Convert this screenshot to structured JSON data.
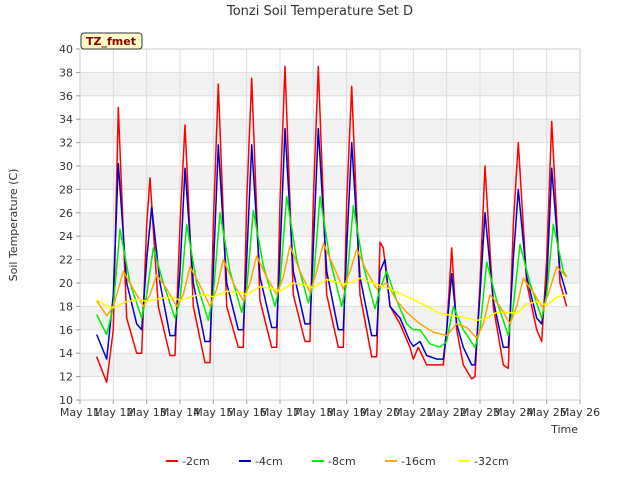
{
  "chart_data": {
    "type": "line",
    "title": "Tonzi Soil Temperature Set D",
    "xlabel": "Time",
    "ylabel": "Soil Temperature (C)",
    "annotation": "TZ_fmet",
    "xlim": [
      11,
      26
    ],
    "ylim": [
      10,
      40
    ],
    "x_ticks": [
      "May 11",
      "May 12",
      "May 13",
      "May 14",
      "May 15",
      "May 16",
      "May 17",
      "May 18",
      "May 19",
      "May 20",
      "May 21",
      "May 22",
      "May 23",
      "May 24",
      "May 25",
      "May 26"
    ],
    "y_ticks": [
      10,
      12,
      14,
      16,
      18,
      20,
      22,
      24,
      26,
      28,
      30,
      32,
      34,
      36,
      38,
      40
    ],
    "grid": true,
    "legend_position": "bottom",
    "series": [
      {
        "name": "-2cm",
        "color": "#ff0000",
        "points": [
          [
            11.5,
            13.7
          ],
          [
            11.8,
            11.5
          ],
          [
            12.0,
            16.0
          ],
          [
            12.15,
            35.0
          ],
          [
            12.4,
            17.0
          ],
          [
            12.7,
            14.0
          ],
          [
            12.85,
            14.0
          ],
          [
            13.0,
            25.0
          ],
          [
            13.1,
            29.0
          ],
          [
            13.35,
            18.0
          ],
          [
            13.7,
            13.8
          ],
          [
            13.85,
            13.8
          ],
          [
            14.0,
            25.0
          ],
          [
            14.15,
            33.5
          ],
          [
            14.4,
            18.0
          ],
          [
            14.75,
            13.2
          ],
          [
            14.9,
            13.2
          ],
          [
            15.0,
            25.0
          ],
          [
            15.15,
            37.0
          ],
          [
            15.4,
            18.0
          ],
          [
            15.75,
            14.5
          ],
          [
            15.9,
            14.5
          ],
          [
            16.0,
            27.0
          ],
          [
            16.15,
            37.5
          ],
          [
            16.4,
            18.5
          ],
          [
            16.75,
            14.5
          ],
          [
            16.9,
            14.5
          ],
          [
            17.0,
            27.0
          ],
          [
            17.15,
            38.5
          ],
          [
            17.4,
            19.0
          ],
          [
            17.75,
            15.0
          ],
          [
            17.9,
            15.0
          ],
          [
            18.0,
            27.0
          ],
          [
            18.15,
            38.5
          ],
          [
            18.4,
            19.0
          ],
          [
            18.75,
            14.5
          ],
          [
            18.9,
            14.5
          ],
          [
            19.0,
            27.0
          ],
          [
            19.15,
            36.8
          ],
          [
            19.4,
            19.0
          ],
          [
            19.75,
            13.7
          ],
          [
            19.9,
            13.7
          ],
          [
            20.0,
            23.5
          ],
          [
            20.1,
            23.0
          ],
          [
            20.3,
            18.0
          ],
          [
            20.6,
            16.5
          ],
          [
            20.9,
            14.5
          ],
          [
            21.0,
            13.5
          ],
          [
            21.15,
            14.5
          ],
          [
            21.4,
            13.0
          ],
          [
            21.7,
            13.0
          ],
          [
            21.9,
            13.0
          ],
          [
            22.0,
            16.0
          ],
          [
            22.15,
            23.0
          ],
          [
            22.3,
            16.0
          ],
          [
            22.5,
            13.0
          ],
          [
            22.75,
            11.8
          ],
          [
            22.85,
            12.0
          ],
          [
            23.0,
            20.0
          ],
          [
            23.15,
            30.0
          ],
          [
            23.4,
            18.0
          ],
          [
            23.7,
            13.0
          ],
          [
            23.85,
            12.7
          ],
          [
            24.0,
            25.0
          ],
          [
            24.15,
            32.0
          ],
          [
            24.4,
            20.0
          ],
          [
            24.7,
            16.0
          ],
          [
            24.85,
            15.0
          ],
          [
            25.0,
            22.0
          ],
          [
            25.15,
            33.8
          ],
          [
            25.4,
            20.0
          ],
          [
            25.6,
            18.0
          ]
        ]
      },
      {
        "name": "-4cm",
        "color": "#0000cc",
        "points": [
          [
            11.5,
            15.6
          ],
          [
            11.8,
            13.5
          ],
          [
            12.0,
            19.0
          ],
          [
            12.15,
            30.2
          ],
          [
            12.4,
            20.0
          ],
          [
            12.7,
            16.5
          ],
          [
            12.85,
            16.0
          ],
          [
            13.0,
            22.0
          ],
          [
            13.15,
            26.5
          ],
          [
            13.4,
            20.0
          ],
          [
            13.7,
            15.5
          ],
          [
            13.85,
            15.5
          ],
          [
            14.0,
            21.0
          ],
          [
            14.15,
            29.8
          ],
          [
            14.4,
            20.0
          ],
          [
            14.75,
            15.0
          ],
          [
            14.9,
            15.0
          ],
          [
            15.0,
            21.0
          ],
          [
            15.15,
            31.8
          ],
          [
            15.4,
            20.0
          ],
          [
            15.75,
            16.0
          ],
          [
            15.9,
            16.0
          ],
          [
            16.0,
            22.0
          ],
          [
            16.15,
            31.8
          ],
          [
            16.4,
            20.5
          ],
          [
            16.75,
            16.2
          ],
          [
            16.9,
            16.2
          ],
          [
            17.0,
            22.5
          ],
          [
            17.15,
            33.2
          ],
          [
            17.4,
            21.0
          ],
          [
            17.75,
            16.5
          ],
          [
            17.9,
            16.5
          ],
          [
            18.0,
            23.0
          ],
          [
            18.15,
            33.2
          ],
          [
            18.4,
            21.0
          ],
          [
            18.75,
            16.0
          ],
          [
            18.9,
            16.0
          ],
          [
            19.0,
            23.0
          ],
          [
            19.15,
            32.0
          ],
          [
            19.4,
            20.5
          ],
          [
            19.75,
            15.5
          ],
          [
            19.9,
            15.5
          ],
          [
            20.0,
            21.0
          ],
          [
            20.15,
            22.0
          ],
          [
            20.3,
            18.0
          ],
          [
            20.6,
            17.0
          ],
          [
            20.9,
            15.0
          ],
          [
            21.0,
            14.6
          ],
          [
            21.2,
            15.0
          ],
          [
            21.4,
            13.8
          ],
          [
            21.7,
            13.5
          ],
          [
            21.9,
            13.5
          ],
          [
            22.0,
            16.0
          ],
          [
            22.15,
            20.8
          ],
          [
            22.3,
            16.5
          ],
          [
            22.5,
            14.5
          ],
          [
            22.75,
            13.0
          ],
          [
            22.85,
            13.0
          ],
          [
            23.0,
            19.0
          ],
          [
            23.15,
            26.0
          ],
          [
            23.4,
            18.5
          ],
          [
            23.7,
            14.5
          ],
          [
            23.85,
            14.5
          ],
          [
            24.0,
            22.0
          ],
          [
            24.15,
            28.0
          ],
          [
            24.4,
            20.5
          ],
          [
            24.7,
            17.0
          ],
          [
            24.85,
            16.5
          ],
          [
            25.0,
            20.0
          ],
          [
            25.15,
            29.8
          ],
          [
            25.4,
            21.0
          ],
          [
            25.6,
            19.0
          ]
        ]
      },
      {
        "name": "-8cm",
        "color": "#00ee00",
        "points": [
          [
            11.5,
            17.3
          ],
          [
            11.8,
            15.6
          ],
          [
            12.0,
            18.0
          ],
          [
            12.2,
            24.6
          ],
          [
            12.5,
            20.0
          ],
          [
            12.85,
            17.0
          ],
          [
            13.0,
            19.0
          ],
          [
            13.2,
            23.0
          ],
          [
            13.5,
            20.0
          ],
          [
            13.85,
            17.0
          ],
          [
            14.0,
            18.5
          ],
          [
            14.2,
            25.0
          ],
          [
            14.5,
            20.0
          ],
          [
            14.85,
            16.8
          ],
          [
            15.0,
            19.0
          ],
          [
            15.2,
            26.0
          ],
          [
            15.5,
            21.0
          ],
          [
            15.85,
            17.5
          ],
          [
            16.0,
            19.5
          ],
          [
            16.2,
            26.2
          ],
          [
            16.5,
            21.5
          ],
          [
            16.85,
            18.0
          ],
          [
            17.0,
            20.0
          ],
          [
            17.2,
            27.4
          ],
          [
            17.5,
            22.0
          ],
          [
            17.85,
            18.3
          ],
          [
            18.0,
            20.0
          ],
          [
            18.2,
            27.4
          ],
          [
            18.5,
            22.0
          ],
          [
            18.85,
            18.0
          ],
          [
            19.0,
            20.0
          ],
          [
            19.2,
            26.6
          ],
          [
            19.5,
            21.5
          ],
          [
            19.85,
            17.8
          ],
          [
            20.0,
            19.5
          ],
          [
            20.2,
            21.0
          ],
          [
            20.5,
            18.5
          ],
          [
            20.8,
            16.5
          ],
          [
            21.0,
            16.0
          ],
          [
            21.2,
            16.0
          ],
          [
            21.5,
            14.8
          ],
          [
            21.8,
            14.5
          ],
          [
            22.0,
            15.0
          ],
          [
            22.2,
            18.0
          ],
          [
            22.5,
            16.0
          ],
          [
            22.85,
            14.5
          ],
          [
            23.0,
            16.0
          ],
          [
            23.2,
            21.8
          ],
          [
            23.5,
            18.5
          ],
          [
            23.85,
            15.5
          ],
          [
            24.0,
            18.0
          ],
          [
            24.2,
            23.3
          ],
          [
            24.5,
            20.0
          ],
          [
            24.85,
            17.0
          ],
          [
            25.0,
            19.0
          ],
          [
            25.2,
            25.0
          ],
          [
            25.5,
            21.0
          ],
          [
            25.6,
            20.5
          ]
        ]
      },
      {
        "name": "-16cm",
        "color": "#ffa500",
        "points": [
          [
            11.5,
            18.5
          ],
          [
            11.8,
            17.2
          ],
          [
            12.0,
            18.0
          ],
          [
            12.3,
            21.0
          ],
          [
            12.6,
            19.5
          ],
          [
            12.9,
            18.0
          ],
          [
            13.1,
            19.0
          ],
          [
            13.3,
            20.7
          ],
          [
            13.6,
            19.5
          ],
          [
            13.9,
            18.0
          ],
          [
            14.1,
            19.0
          ],
          [
            14.3,
            21.4
          ],
          [
            14.6,
            19.8
          ],
          [
            14.9,
            18.0
          ],
          [
            15.1,
            19.5
          ],
          [
            15.3,
            22.0
          ],
          [
            15.6,
            20.0
          ],
          [
            15.9,
            18.5
          ],
          [
            16.1,
            20.0
          ],
          [
            16.3,
            22.3
          ],
          [
            16.6,
            20.5
          ],
          [
            16.9,
            19.0
          ],
          [
            17.1,
            20.5
          ],
          [
            17.3,
            23.2
          ],
          [
            17.6,
            21.0
          ],
          [
            17.9,
            19.2
          ],
          [
            18.1,
            21.0
          ],
          [
            18.3,
            23.4
          ],
          [
            18.6,
            21.5
          ],
          [
            18.9,
            19.5
          ],
          [
            19.1,
            21.0
          ],
          [
            19.3,
            22.9
          ],
          [
            19.6,
            21.0
          ],
          [
            19.9,
            19.5
          ],
          [
            20.2,
            20.0
          ],
          [
            20.5,
            18.5
          ],
          [
            20.8,
            17.5
          ],
          [
            21.2,
            16.5
          ],
          [
            21.6,
            15.8
          ],
          [
            22.0,
            15.5
          ],
          [
            22.3,
            16.5
          ],
          [
            22.6,
            16.2
          ],
          [
            22.9,
            15.3
          ],
          [
            23.1,
            16.5
          ],
          [
            23.3,
            19.0
          ],
          [
            23.6,
            18.0
          ],
          [
            23.9,
            16.5
          ],
          [
            24.1,
            18.0
          ],
          [
            24.3,
            20.4
          ],
          [
            24.6,
            19.2
          ],
          [
            24.9,
            17.8
          ],
          [
            25.1,
            19.5
          ],
          [
            25.3,
            21.4
          ],
          [
            25.6,
            20.5
          ]
        ]
      },
      {
        "name": "-32cm",
        "color": "#ffff00",
        "points": [
          [
            11.5,
            18.6
          ],
          [
            11.8,
            18.0
          ],
          [
            12.0,
            17.9
          ],
          [
            12.4,
            18.4
          ],
          [
            12.8,
            18.6
          ],
          [
            13.0,
            18.4
          ],
          [
            13.4,
            18.7
          ],
          [
            13.8,
            18.8
          ],
          [
            14.0,
            18.5
          ],
          [
            14.4,
            18.9
          ],
          [
            14.8,
            19.0
          ],
          [
            15.0,
            18.8
          ],
          [
            15.4,
            19.3
          ],
          [
            15.8,
            19.2
          ],
          [
            16.0,
            19.0
          ],
          [
            16.4,
            19.7
          ],
          [
            16.8,
            19.5
          ],
          [
            17.0,
            19.3
          ],
          [
            17.4,
            20.0
          ],
          [
            17.8,
            19.8
          ],
          [
            18.0,
            19.6
          ],
          [
            18.4,
            20.3
          ],
          [
            18.8,
            20.0
          ],
          [
            19.0,
            19.9
          ],
          [
            19.4,
            20.4
          ],
          [
            19.8,
            20.0
          ],
          [
            20.2,
            19.6
          ],
          [
            20.6,
            19.1
          ],
          [
            21.0,
            18.6
          ],
          [
            21.4,
            18.0
          ],
          [
            21.8,
            17.4
          ],
          [
            22.2,
            17.2
          ],
          [
            22.6,
            17.0
          ],
          [
            22.9,
            16.8
          ],
          [
            23.2,
            17.0
          ],
          [
            23.5,
            17.5
          ],
          [
            23.8,
            17.5
          ],
          [
            24.1,
            17.4
          ],
          [
            24.4,
            18.2
          ],
          [
            24.7,
            18.4
          ],
          [
            25.0,
            18.1
          ],
          [
            25.3,
            18.8
          ],
          [
            25.6,
            19.0
          ]
        ]
      }
    ]
  }
}
